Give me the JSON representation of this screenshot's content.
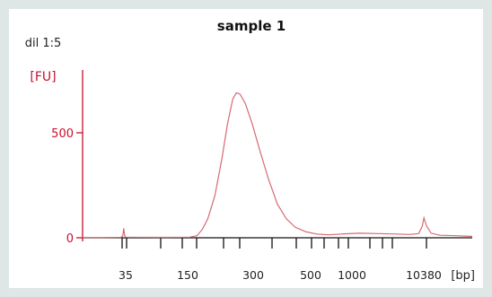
{
  "chart_data": {
    "type": "line",
    "title": "sample 1",
    "annotation": "dil 1:5",
    "ylabel": "[FU]",
    "xlabel": "[bp]",
    "ylim": [
      -20,
      760
    ],
    "y_ticks": [
      0,
      500
    ],
    "x_tick_labels": [
      "35",
      "150",
      "300",
      "500",
      "1000",
      "10380"
    ],
    "minor_tick_count": 16,
    "grid": false,
    "colors": {
      "axis_y": "#c8102e",
      "trace": "#d66a73",
      "axis_x": "#111111"
    },
    "series": [
      {
        "values": [
          [
            0,
            1
          ],
          [
            20,
            1
          ],
          [
            43,
            2
          ],
          [
            45,
            10
          ],
          [
            46,
            45
          ],
          [
            47,
            12
          ],
          [
            48,
            3
          ],
          [
            90,
            2
          ],
          [
            120,
            3
          ],
          [
            128,
            10
          ],
          [
            134,
            40
          ],
          [
            140,
            90
          ],
          [
            148,
            200
          ],
          [
            156,
            380
          ],
          [
            162,
            540
          ],
          [
            168,
            660
          ],
          [
            172,
            690
          ],
          [
            176,
            685
          ],
          [
            182,
            640
          ],
          [
            190,
            540
          ],
          [
            198,
            420
          ],
          [
            208,
            280
          ],
          [
            218,
            160
          ],
          [
            228,
            90
          ],
          [
            238,
            50
          ],
          [
            250,
            28
          ],
          [
            262,
            18
          ],
          [
            275,
            14
          ],
          [
            290,
            18
          ],
          [
            310,
            22
          ],
          [
            330,
            20
          ],
          [
            350,
            18
          ],
          [
            366,
            16
          ],
          [
            376,
            20
          ],
          [
            380,
            55
          ],
          [
            382,
            95
          ],
          [
            385,
            55
          ],
          [
            390,
            22
          ],
          [
            400,
            12
          ],
          [
            418,
            10
          ],
          [
            428,
            8
          ],
          [
            436,
            7
          ]
        ]
      }
    ]
  }
}
